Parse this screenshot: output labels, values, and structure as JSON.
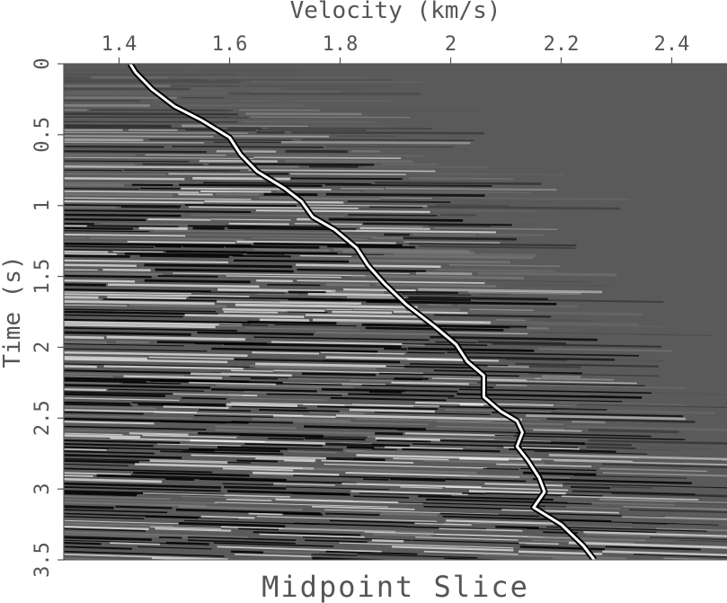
{
  "chart_data": {
    "type": "line",
    "title": "Midpoint Slice",
    "xlabel": "Velocity (km/s)",
    "ylabel": "Time (s)",
    "xlim": [
      1.3,
      2.5
    ],
    "ylim": [
      3.5,
      0
    ],
    "x_ticks": [
      {
        "value": 1.4,
        "label": "1.4"
      },
      {
        "value": 1.6,
        "label": "1.6"
      },
      {
        "value": 1.8,
        "label": "1.8"
      },
      {
        "value": 2.0,
        "label": "2"
      },
      {
        "value": 2.2,
        "label": "2.2"
      },
      {
        "value": 2.4,
        "label": "2.4"
      }
    ],
    "y_ticks": [
      {
        "value": 0,
        "label": "0"
      },
      {
        "value": 0.5,
        "label": "0.5"
      },
      {
        "value": 1,
        "label": "1"
      },
      {
        "value": 1.5,
        "label": "1.5"
      },
      {
        "value": 2,
        "label": "2"
      },
      {
        "value": 2.5,
        "label": "2.5"
      },
      {
        "value": 3,
        "label": "3"
      },
      {
        "value": 3.5,
        "label": "3.5"
      }
    ],
    "x_axis_position": "top",
    "background": "grayscale semblance image",
    "series": [
      {
        "style": "white line with black outline",
        "points": [
          {
            "v": 1.42,
            "t": 0.0
          },
          {
            "v": 1.43,
            "t": 0.06
          },
          {
            "v": 1.46,
            "t": 0.18
          },
          {
            "v": 1.5,
            "t": 0.3
          },
          {
            "v": 1.55,
            "t": 0.4
          },
          {
            "v": 1.6,
            "t": 0.52
          },
          {
            "v": 1.62,
            "t": 0.64
          },
          {
            "v": 1.65,
            "t": 0.76
          },
          {
            "v": 1.7,
            "t": 0.88
          },
          {
            "v": 1.73,
            "t": 0.97
          },
          {
            "v": 1.75,
            "t": 1.08
          },
          {
            "v": 1.79,
            "t": 1.17
          },
          {
            "v": 1.83,
            "t": 1.3
          },
          {
            "v": 1.85,
            "t": 1.42
          },
          {
            "v": 1.88,
            "t": 1.55
          },
          {
            "v": 1.92,
            "t": 1.7
          },
          {
            "v": 1.97,
            "t": 1.85
          },
          {
            "v": 2.01,
            "t": 1.98
          },
          {
            "v": 2.03,
            "t": 2.1
          },
          {
            "v": 2.06,
            "t": 2.2
          },
          {
            "v": 2.06,
            "t": 2.35
          },
          {
            "v": 2.09,
            "t": 2.45
          },
          {
            "v": 2.12,
            "t": 2.52
          },
          {
            "v": 2.13,
            "t": 2.6
          },
          {
            "v": 2.12,
            "t": 2.7
          },
          {
            "v": 2.14,
            "t": 2.8
          },
          {
            "v": 2.16,
            "t": 2.92
          },
          {
            "v": 2.17,
            "t": 3.02
          },
          {
            "v": 2.15,
            "t": 3.13
          },
          {
            "v": 2.2,
            "t": 3.25
          },
          {
            "v": 2.24,
            "t": 3.4
          },
          {
            "v": 2.26,
            "t": 3.5
          }
        ]
      }
    ]
  }
}
